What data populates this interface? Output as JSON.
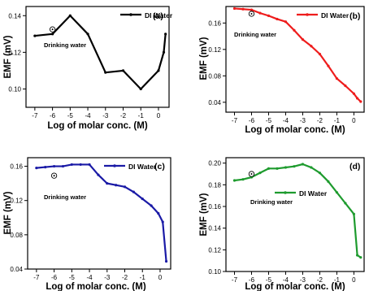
{
  "chart_data": [
    {
      "type": "line",
      "panel_label": "(a)",
      "xlabel": "Log of molar conc. (M)",
      "ylabel": "EMF (mV)",
      "xlim": [
        -7.5,
        0.6
      ],
      "ylim": [
        0.09,
        0.145
      ],
      "xticks": [
        -7,
        -6,
        -5,
        -4,
        -3,
        -2,
        -1,
        0
      ],
      "yticks": [
        0.1,
        0.12,
        0.14
      ],
      "ytick_labels": [
        "0.10",
        "0.12",
        "0.14"
      ],
      "color": "#000000",
      "legend_position": "top-right",
      "series": [
        {
          "name": "DI Water",
          "x": [
            -7,
            -6,
            -5,
            -4,
            -3,
            -2,
            -1,
            0,
            0.3,
            0.4
          ],
          "y": [
            0.129,
            0.13,
            0.14,
            0.13,
            0.109,
            0.11,
            0.1,
            0.11,
            0.12,
            0.13
          ]
        }
      ],
      "annotation": {
        "text": "Drinking water",
        "x": -6,
        "y": 0.1325
      }
    },
    {
      "type": "line",
      "panel_label": "(b)",
      "xlabel": "Log of molar conc. (M)",
      "ylabel": "EMF (mV)",
      "xlim": [
        -7.5,
        0.6
      ],
      "ylim": [
        0.025,
        0.185
      ],
      "xticks": [
        -7,
        -6,
        -5,
        -4,
        -3,
        -2,
        -1,
        0
      ],
      "yticks": [
        0.04,
        0.08,
        0.12,
        0.16
      ],
      "ytick_labels": [
        "0.04",
        "0.08",
        "0.12",
        "0.16"
      ],
      "color": "#ee1c1c",
      "legend_position": "top-right",
      "series": [
        {
          "name": "DI Water",
          "x": [
            -7,
            -6.5,
            -6,
            -5.5,
            -5,
            -4.5,
            -4,
            -3.5,
            -3,
            -2.5,
            -2,
            -1.5,
            -1,
            -0.5,
            0,
            0.2,
            0.4
          ],
          "y": [
            0.182,
            0.181,
            0.18,
            0.175,
            0.171,
            0.166,
            0.162,
            0.149,
            0.135,
            0.125,
            0.113,
            0.095,
            0.076,
            0.065,
            0.053,
            0.046,
            0.041
          ]
        }
      ],
      "annotation": {
        "text": "Drinking water",
        "x": -6,
        "y": 0.174
      }
    },
    {
      "type": "line",
      "panel_label": "(c)",
      "xlabel": "Log of molar conc. (M)",
      "ylabel": "EMF (mV)",
      "xlim": [
        -7.5,
        0.6
      ],
      "ylim": [
        0.04,
        0.17
      ],
      "xticks": [
        -7,
        -6,
        -5,
        -4,
        -3,
        -2,
        -1,
        0
      ],
      "yticks": [
        0.04,
        0.08,
        0.12,
        0.16
      ],
      "ytick_labels": [
        "0.04",
        "0.08",
        "0.12",
        "0.16"
      ],
      "color": "#1a1aa6",
      "legend_position": "top-right",
      "series": [
        {
          "name": "DI Water",
          "x": [
            -7,
            -6.5,
            -6,
            -5.5,
            -5,
            -4.5,
            -4,
            -3.5,
            -3,
            -2.5,
            -2,
            -1.5,
            -1,
            -0.5,
            -0.1,
            0.15,
            0.35
          ],
          "y": [
            0.158,
            0.159,
            0.16,
            0.16,
            0.162,
            0.162,
            0.162,
            0.15,
            0.14,
            0.138,
            0.136,
            0.13,
            0.122,
            0.114,
            0.105,
            0.095,
            0.049
          ]
        }
      ],
      "annotation": {
        "text": "Drinking water",
        "x": -6,
        "y": 0.149
      }
    },
    {
      "type": "line",
      "panel_label": "(d)",
      "xlabel": "Log of molar conc. (M)",
      "ylabel": "EMF (mV)",
      "xlim": [
        -7.5,
        0.6
      ],
      "ylim": [
        0.1,
        0.205
      ],
      "xticks": [
        -7,
        -6,
        -5,
        -4,
        -3,
        -2,
        -1,
        0
      ],
      "yticks": [
        0.1,
        0.12,
        0.14,
        0.16,
        0.18,
        0.2
      ],
      "ytick_labels": [
        "0.10",
        "0.12",
        "0.14",
        "0.16",
        "0.18",
        "0.20"
      ],
      "color": "#1e9b2e",
      "legend_position": "center-right",
      "series": [
        {
          "name": "DI Water",
          "x": [
            -7,
            -6.5,
            -6,
            -5.5,
            -5,
            -4.5,
            -4,
            -3.5,
            -3,
            -2.5,
            -2,
            -1.5,
            -1,
            -0.5,
            0,
            0.2,
            0.4
          ],
          "y": [
            0.184,
            0.185,
            0.187,
            0.191,
            0.195,
            0.195,
            0.196,
            0.197,
            0.199,
            0.196,
            0.191,
            0.183,
            0.173,
            0.163,
            0.153,
            0.115,
            0.113
          ]
        }
      ],
      "annotation": {
        "text": "Drinking water",
        "x": -6,
        "y": 0.19
      }
    }
  ]
}
